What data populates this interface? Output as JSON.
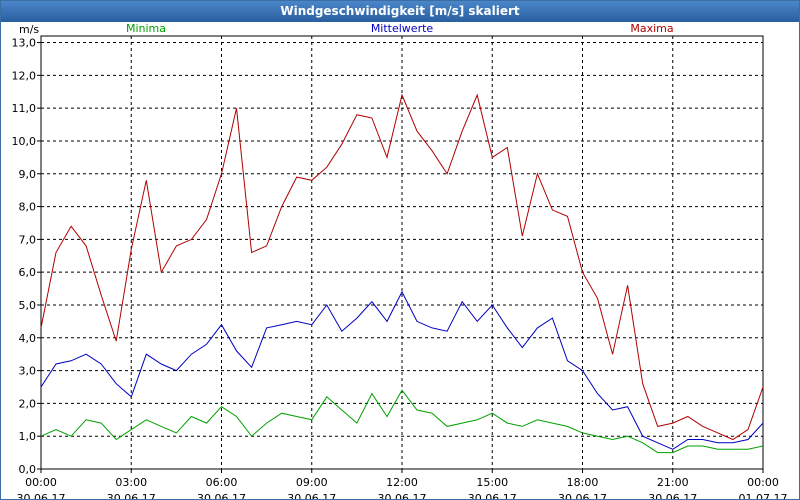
{
  "chart_data": {
    "type": "line",
    "title": "Windgeschwindigkeit [m/s] skaliert",
    "ylabel": "m/s",
    "ylim": [
      0,
      13.2
    ],
    "grid": true,
    "legend_position": "top",
    "y_ticks": [
      "0,0",
      "1,0",
      "2,0",
      "3,0",
      "4,0",
      "5,0",
      "6,0",
      "7,0",
      "8,0",
      "9,0",
      "10,0",
      "11,0",
      "12,0",
      "13,0"
    ],
    "x_ticks": [
      {
        "time": "00:00",
        "date": "30.06.17"
      },
      {
        "time": "03:00",
        "date": "30.06.17"
      },
      {
        "time": "06:00",
        "date": "30.06.17"
      },
      {
        "time": "09:00",
        "date": "30.06.17"
      },
      {
        "time": "12:00",
        "date": "30.06.17"
      },
      {
        "time": "15:00",
        "date": "30.06.17"
      },
      {
        "time": "18:00",
        "date": "30.06.17"
      },
      {
        "time": "21:00",
        "date": "30.06.17"
      },
      {
        "time": "00:00",
        "date": "01.07.17"
      }
    ],
    "x_range_hours": [
      0,
      24
    ],
    "series": [
      {
        "name": "Minima",
        "color": "#00a000",
        "x": [
          0,
          0.5,
          1,
          1.5,
          2,
          2.5,
          3,
          3.5,
          4,
          4.5,
          5,
          5.5,
          6,
          6.5,
          7,
          7.5,
          8,
          8.5,
          9,
          9.5,
          10,
          10.5,
          11,
          11.5,
          12,
          12.5,
          13,
          13.5,
          14,
          14.5,
          15,
          15.5,
          16,
          16.5,
          17,
          17.5,
          18,
          18.5,
          19,
          19.5,
          20,
          20.5,
          21,
          21.5,
          22,
          22.5,
          23,
          23.5,
          24
        ],
        "values": [
          1.0,
          1.2,
          1.0,
          1.5,
          1.4,
          0.9,
          1.2,
          1.5,
          1.3,
          1.1,
          1.6,
          1.4,
          1.9,
          1.6,
          1.0,
          1.4,
          1.7,
          1.6,
          1.5,
          2.2,
          1.8,
          1.4,
          2.3,
          1.6,
          2.4,
          1.8,
          1.7,
          1.3,
          1.4,
          1.5,
          1.7,
          1.4,
          1.3,
          1.5,
          1.4,
          1.3,
          1.1,
          1.0,
          0.9,
          1.0,
          0.8,
          0.5,
          0.5,
          0.7,
          0.7,
          0.6,
          0.6,
          0.6,
          0.7
        ]
      },
      {
        "name": "Mittelwerte",
        "color": "#0000c0",
        "x": [
          0,
          0.5,
          1,
          1.5,
          2,
          2.5,
          3,
          3.5,
          4,
          4.5,
          5,
          5.5,
          6,
          6.5,
          7,
          7.5,
          8,
          8.5,
          9,
          9.5,
          10,
          10.5,
          11,
          11.5,
          12,
          12.5,
          13,
          13.5,
          14,
          14.5,
          15,
          15.5,
          16,
          16.5,
          17,
          17.5,
          18,
          18.5,
          19,
          19.5,
          20,
          20.5,
          21,
          21.5,
          22,
          22.5,
          23,
          23.5,
          24
        ],
        "values": [
          2.5,
          3.2,
          3.3,
          3.5,
          3.2,
          2.6,
          2.2,
          3.5,
          3.2,
          3.0,
          3.5,
          3.8,
          4.4,
          3.6,
          3.1,
          4.3,
          4.4,
          4.5,
          4.4,
          5.0,
          4.2,
          4.6,
          5.1,
          4.5,
          5.4,
          4.5,
          4.3,
          4.2,
          5.1,
          4.5,
          5.0,
          4.3,
          3.7,
          4.3,
          4.6,
          3.3,
          3.0,
          2.3,
          1.8,
          1.9,
          1.0,
          0.8,
          0.6,
          0.9,
          0.9,
          0.8,
          0.8,
          0.9,
          1.4
        ]
      },
      {
        "name": "Maxima",
        "color": "#b00000",
        "x": [
          0,
          0.5,
          1,
          1.5,
          2,
          2.5,
          3,
          3.5,
          4,
          4.5,
          5,
          5.5,
          6,
          6.5,
          7,
          7.5,
          8,
          8.5,
          9,
          9.5,
          10,
          10.5,
          11,
          11.5,
          12,
          12.5,
          13,
          13.5,
          14,
          14.5,
          15,
          15.5,
          16,
          16.5,
          17,
          17.5,
          18,
          18.5,
          19,
          19.5,
          20,
          20.5,
          21,
          21.5,
          22,
          22.5,
          23,
          23.5,
          24
        ],
        "values": [
          4.3,
          6.6,
          7.4,
          6.8,
          5.3,
          3.9,
          6.7,
          8.8,
          6.0,
          6.8,
          7.0,
          7.6,
          9.0,
          11.0,
          6.6,
          6.8,
          8.0,
          8.9,
          8.8,
          9.2,
          9.9,
          10.8,
          10.7,
          9.5,
          11.4,
          10.3,
          9.7,
          9.0,
          10.3,
          11.4,
          9.5,
          9.8,
          7.1,
          9.0,
          7.9,
          7.7,
          6.0,
          5.2,
          3.5,
          5.6,
          2.6,
          1.3,
          1.4,
          1.6,
          1.3,
          1.1,
          0.9,
          1.2,
          2.5
        ]
      }
    ]
  }
}
